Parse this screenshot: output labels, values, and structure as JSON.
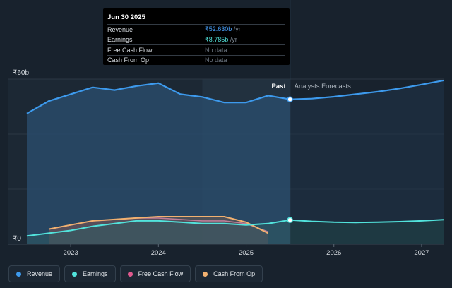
{
  "tooltip": {
    "date": "Jun 30 2025",
    "rows": [
      {
        "label": "Revenue",
        "value": "₹52.630b",
        "unit": " /yr",
        "color": "#4aa3ff"
      },
      {
        "label": "Earnings",
        "value": "₹8.785b",
        "unit": " /yr",
        "color": "#52e3dc"
      },
      {
        "label": "Free Cash Flow",
        "value": "No data",
        "unit": "",
        "color": "#6e7884"
      },
      {
        "label": "Cash From Op",
        "value": "No data",
        "unit": "",
        "color": "#6e7884"
      }
    ]
  },
  "chart_data": {
    "type": "area",
    "y_top_label": "₹60b",
    "y_bottom_label": "₹0",
    "ylim": [
      0,
      60
    ],
    "xlim": [
      2022.5,
      2027.25
    ],
    "x_ticks": [
      {
        "value": 2023,
        "label": "2023"
      },
      {
        "value": 2024,
        "label": "2024"
      },
      {
        "value": 2025,
        "label": "2025"
      },
      {
        "value": 2026,
        "label": "2026"
      },
      {
        "value": 2027,
        "label": "2027"
      }
    ],
    "past_label": "Past",
    "forecast_label": "Analysts Forecasts",
    "past_end": 2025.5,
    "highlight_start": 2024.5,
    "series": [
      {
        "name": "Revenue",
        "color": "#3d9aed",
        "points": [
          [
            2022.5,
            47.5
          ],
          [
            2022.75,
            52.0
          ],
          [
            2023.0,
            54.5
          ],
          [
            2023.25,
            57.0
          ],
          [
            2023.5,
            56.0
          ],
          [
            2023.75,
            57.5
          ],
          [
            2024.0,
            58.5
          ],
          [
            2024.25,
            54.5
          ],
          [
            2024.5,
            53.5
          ],
          [
            2024.75,
            51.5
          ],
          [
            2025.0,
            51.5
          ],
          [
            2025.25,
            54.0
          ],
          [
            2025.5,
            52.63
          ]
        ],
        "forecast": [
          [
            2025.5,
            52.63
          ],
          [
            2025.75,
            52.9
          ],
          [
            2026.0,
            53.6
          ],
          [
            2026.25,
            54.5
          ],
          [
            2026.5,
            55.4
          ],
          [
            2026.75,
            56.6
          ],
          [
            2027.0,
            58.0
          ],
          [
            2027.25,
            59.5
          ]
        ]
      },
      {
        "name": "Earnings",
        "color": "#52e3dc",
        "points": [
          [
            2022.5,
            3.0
          ],
          [
            2022.75,
            4.0
          ],
          [
            2023.0,
            5.0
          ],
          [
            2023.25,
            6.5
          ],
          [
            2023.5,
            7.5
          ],
          [
            2023.75,
            8.5
          ],
          [
            2024.0,
            8.5
          ],
          [
            2024.25,
            8.0
          ],
          [
            2024.5,
            7.5
          ],
          [
            2024.75,
            7.5
          ],
          [
            2025.0,
            7.0
          ],
          [
            2025.25,
            7.5
          ],
          [
            2025.5,
            8.785
          ]
        ],
        "forecast": [
          [
            2025.5,
            8.785
          ],
          [
            2025.75,
            8.3
          ],
          [
            2026.0,
            8.0
          ],
          [
            2026.25,
            7.9
          ],
          [
            2026.5,
            8.0
          ],
          [
            2026.75,
            8.2
          ],
          [
            2027.0,
            8.5
          ],
          [
            2027.25,
            8.9
          ]
        ]
      },
      {
        "name": "Free Cash Flow",
        "color": "#e0598e",
        "points": [
          [
            2022.75,
            5.5
          ],
          [
            2023.0,
            7.0
          ],
          [
            2023.25,
            8.5
          ],
          [
            2023.5,
            9.0
          ],
          [
            2023.75,
            9.5
          ],
          [
            2024.0,
            9.5
          ],
          [
            2024.25,
            9.0
          ],
          [
            2024.5,
            8.5
          ],
          [
            2024.75,
            8.5
          ],
          [
            2025.0,
            7.5
          ],
          [
            2025.25,
            4.5
          ]
        ],
        "forecast": []
      },
      {
        "name": "Cash From Op",
        "color": "#f2b170",
        "points": [
          [
            2022.75,
            5.5
          ],
          [
            2023.0,
            7.0
          ],
          [
            2023.25,
            8.5
          ],
          [
            2023.5,
            9.0
          ],
          [
            2023.75,
            9.5
          ],
          [
            2024.0,
            10.0
          ],
          [
            2024.25,
            10.0
          ],
          [
            2024.5,
            10.0
          ],
          [
            2024.75,
            10.0
          ],
          [
            2025.0,
            8.0
          ],
          [
            2025.25,
            4.0
          ]
        ],
        "forecast": []
      }
    ]
  },
  "legend": [
    {
      "label": "Revenue",
      "color": "#3d9aed"
    },
    {
      "label": "Earnings",
      "color": "#52e3dc"
    },
    {
      "label": "Free Cash Flow",
      "color": "#e0598e"
    },
    {
      "label": "Cash From Op",
      "color": "#f2b170"
    }
  ]
}
